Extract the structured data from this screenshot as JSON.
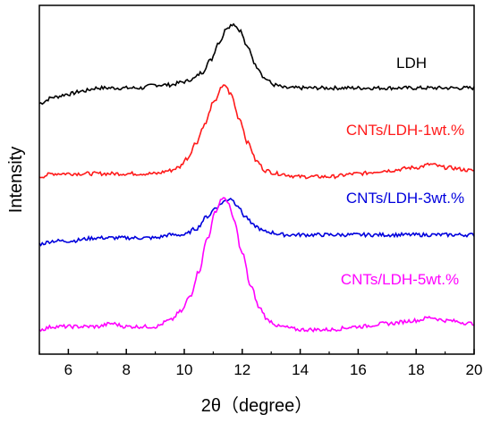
{
  "chart_data": {
    "type": "line",
    "title": "",
    "xlabel": "2θ（degree）",
    "ylabel": "Intensity",
    "xlim": [
      5,
      20
    ],
    "xticks": [
      "6",
      "8",
      "10",
      "12",
      "14",
      "16",
      "18",
      "20"
    ],
    "yticks_shown": false,
    "grid": false,
    "legend": "inline labels",
    "series": [
      {
        "name": "LDH",
        "color": "#000000",
        "points": [
          [
            5.0,
            0.8
          ],
          [
            5.5,
            0.82
          ],
          [
            6.0,
            0.83
          ],
          [
            6.5,
            0.84
          ],
          [
            7.0,
            0.85
          ],
          [
            7.5,
            0.85
          ],
          [
            8.0,
            0.85
          ],
          [
            8.5,
            0.85
          ],
          [
            9.0,
            0.86
          ],
          [
            9.5,
            0.86
          ],
          [
            10.0,
            0.87
          ],
          [
            10.3,
            0.88
          ],
          [
            10.6,
            0.9
          ],
          [
            10.9,
            0.94
          ],
          [
            11.2,
            1.0
          ],
          [
            11.5,
            1.05
          ],
          [
            11.7,
            1.06
          ],
          [
            11.9,
            1.04
          ],
          [
            12.2,
            0.98
          ],
          [
            12.5,
            0.92
          ],
          [
            12.8,
            0.88
          ],
          [
            13.1,
            0.86
          ],
          [
            13.5,
            0.85
          ],
          [
            14.0,
            0.85
          ],
          [
            15.0,
            0.85
          ],
          [
            16.0,
            0.85
          ],
          [
            17.0,
            0.85
          ],
          [
            18.0,
            0.85
          ],
          [
            19.0,
            0.85
          ],
          [
            20.0,
            0.85
          ]
        ]
      },
      {
        "name": "CNTs/LDH-1wt.%",
        "color": "#ff1a1a",
        "points": [
          [
            5.0,
            0.56
          ],
          [
            5.5,
            0.57
          ],
          [
            6.0,
            0.57
          ],
          [
            7.0,
            0.57
          ],
          [
            8.0,
            0.57
          ],
          [
            9.0,
            0.57
          ],
          [
            9.5,
            0.58
          ],
          [
            9.8,
            0.59
          ],
          [
            10.1,
            0.62
          ],
          [
            10.4,
            0.67
          ],
          [
            10.7,
            0.73
          ],
          [
            11.0,
            0.8
          ],
          [
            11.3,
            0.85
          ],
          [
            11.4,
            0.86
          ],
          [
            11.6,
            0.83
          ],
          [
            11.9,
            0.75
          ],
          [
            12.2,
            0.67
          ],
          [
            12.5,
            0.61
          ],
          [
            12.8,
            0.58
          ],
          [
            13.2,
            0.57
          ],
          [
            14.0,
            0.56
          ],
          [
            15.0,
            0.56
          ],
          [
            16.0,
            0.57
          ],
          [
            17.0,
            0.58
          ],
          [
            18.0,
            0.59
          ],
          [
            18.5,
            0.6
          ],
          [
            19.0,
            0.59
          ],
          [
            20.0,
            0.58
          ]
        ]
      },
      {
        "name": "CNTs/LDH-3wt.%",
        "color": "#0000dd",
        "points": [
          [
            5.0,
            0.34
          ],
          [
            5.5,
            0.35
          ],
          [
            6.0,
            0.35
          ],
          [
            7.0,
            0.36
          ],
          [
            8.0,
            0.36
          ],
          [
            9.0,
            0.36
          ],
          [
            9.5,
            0.37
          ],
          [
            10.0,
            0.37
          ],
          [
            10.4,
            0.39
          ],
          [
            10.8,
            0.43
          ],
          [
            11.1,
            0.46
          ],
          [
            11.4,
            0.48
          ],
          [
            11.6,
            0.49
          ],
          [
            11.8,
            0.47
          ],
          [
            12.1,
            0.43
          ],
          [
            12.4,
            0.4
          ],
          [
            12.8,
            0.38
          ],
          [
            13.5,
            0.37
          ],
          [
            14.0,
            0.37
          ],
          [
            15.0,
            0.37
          ],
          [
            16.0,
            0.37
          ],
          [
            17.0,
            0.37
          ],
          [
            18.0,
            0.37
          ],
          [
            19.0,
            0.37
          ],
          [
            20.0,
            0.37
          ]
        ]
      },
      {
        "name": "CNTs/LDH-5wt.%",
        "color": "#ff00ff",
        "points": [
          [
            5.0,
            0.06
          ],
          [
            5.5,
            0.07
          ],
          [
            6.0,
            0.07
          ],
          [
            7.0,
            0.07
          ],
          [
            7.5,
            0.08
          ],
          [
            8.0,
            0.07
          ],
          [
            9.0,
            0.07
          ],
          [
            9.5,
            0.09
          ],
          [
            9.9,
            0.12
          ],
          [
            10.2,
            0.17
          ],
          [
            10.5,
            0.25
          ],
          [
            10.8,
            0.36
          ],
          [
            11.1,
            0.45
          ],
          [
            11.3,
            0.49
          ],
          [
            11.5,
            0.48
          ],
          [
            11.7,
            0.42
          ],
          [
            12.0,
            0.31
          ],
          [
            12.3,
            0.2
          ],
          [
            12.6,
            0.13
          ],
          [
            12.9,
            0.09
          ],
          [
            13.3,
            0.07
          ],
          [
            14.0,
            0.06
          ],
          [
            15.0,
            0.06
          ],
          [
            16.0,
            0.07
          ],
          [
            17.0,
            0.08
          ],
          [
            18.0,
            0.09
          ],
          [
            18.5,
            0.1
          ],
          [
            19.0,
            0.09
          ],
          [
            20.0,
            0.08
          ]
        ]
      }
    ]
  }
}
